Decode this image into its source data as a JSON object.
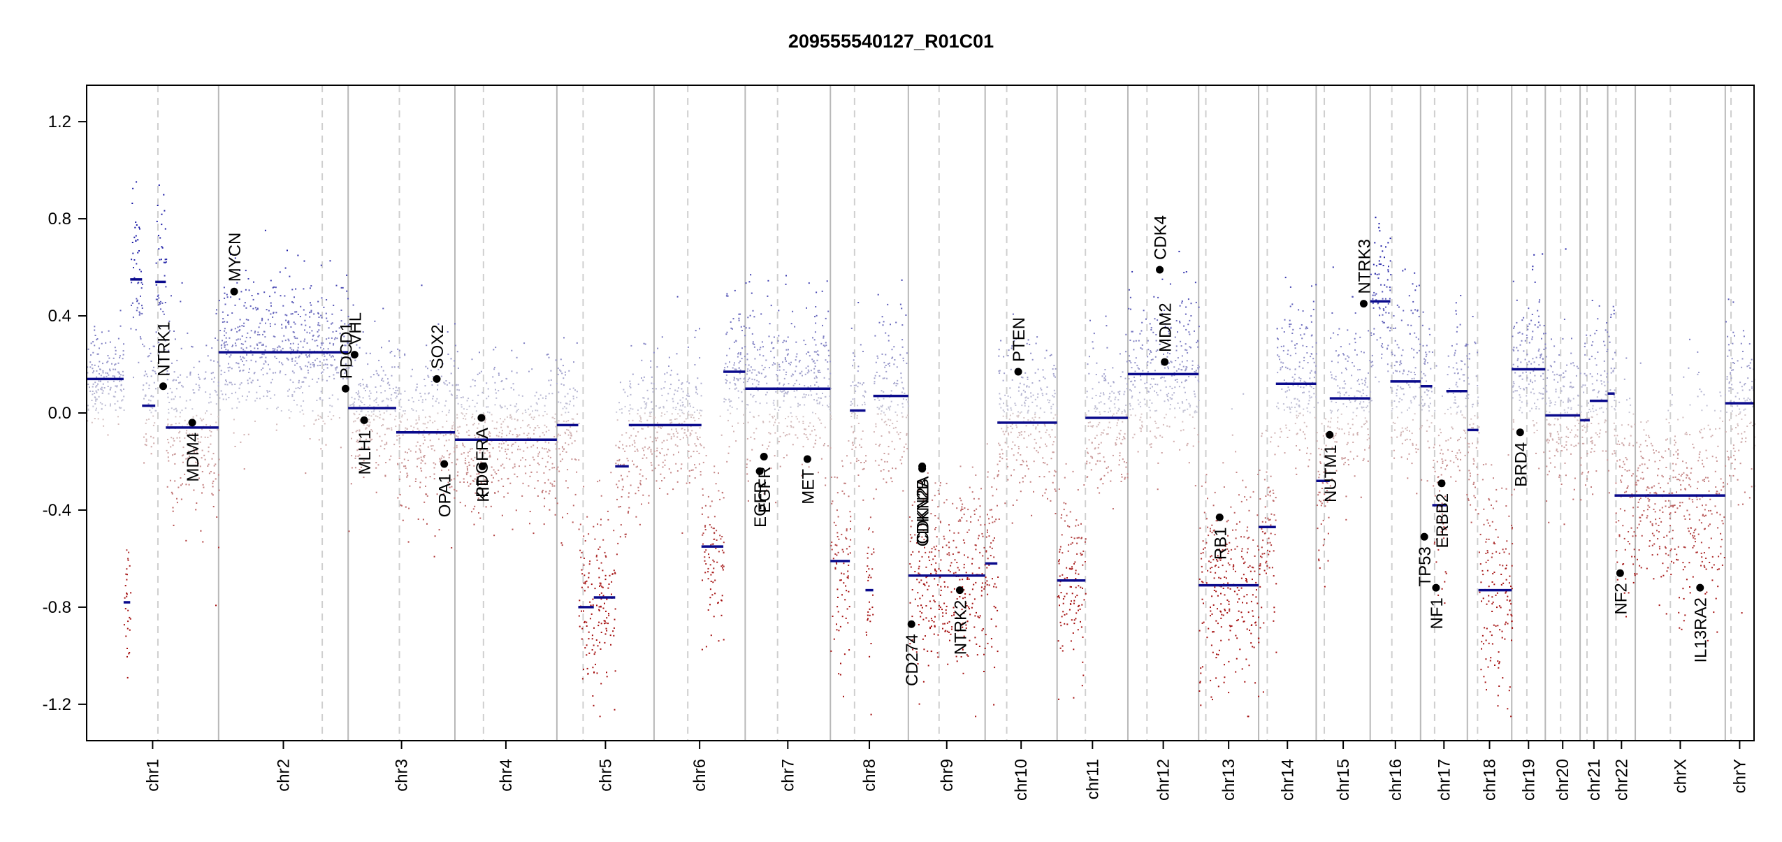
{
  "chart_data": {
    "type": "scatter",
    "title": "209555540127_R01C01",
    "xlabel": "",
    "ylabel": "",
    "ylim": [
      -1.35,
      1.35
    ],
    "yticks": [
      "-1.2",
      "-0.8",
      "-0.4",
      "0.0",
      "0.4",
      "0.8",
      "1.2"
    ],
    "colors": {
      "gain": "#1a1aa6",
      "loss": "#a51010",
      "segment": "#0a0a8c",
      "gene": "#000000",
      "divider": "#b8b8b8"
    },
    "chromosomes": [
      {
        "name": "chr1",
        "width": 11.0,
        "centro": 0.54
      },
      {
        "name": "chr2",
        "width": 10.8,
        "centro": 0.8
      },
      {
        "name": "chr3",
        "width": 8.9,
        "centro": 0.48
      },
      {
        "name": "chr4",
        "width": 8.5,
        "centro": 0.28
      },
      {
        "name": "chr5",
        "width": 8.1,
        "centro": 0.27
      },
      {
        "name": "chr6",
        "width": 7.6,
        "centro": 0.37
      },
      {
        "name": "chr7",
        "width": 7.1,
        "centro": 0.38
      },
      {
        "name": "chr8",
        "width": 6.5,
        "centro": 0.31
      },
      {
        "name": "chr9",
        "width": 6.4,
        "centro": 0.4
      },
      {
        "name": "chr10",
        "width": 6.0,
        "centro": 0.3
      },
      {
        "name": "chr11",
        "width": 5.9,
        "centro": 0.4
      },
      {
        "name": "chr12",
        "width": 5.9,
        "centro": 0.27
      },
      {
        "name": "chr13",
        "width": 5.0,
        "centro": 0.12
      },
      {
        "name": "chr14",
        "width": 4.8,
        "centro": 0.15
      },
      {
        "name": "chr15",
        "width": 4.5,
        "centro": 0.15
      },
      {
        "name": "chr16",
        "width": 4.2,
        "centro": 0.43
      },
      {
        "name": "chr17",
        "width": 3.9,
        "centro": 0.3
      },
      {
        "name": "chr18",
        "width": 3.7,
        "centro": 0.23
      },
      {
        "name": "chr19",
        "width": 2.8,
        "centro": 0.45
      },
      {
        "name": "chr20",
        "width": 2.9,
        "centro": 0.44
      },
      {
        "name": "chr21",
        "width": 2.3,
        "centro": 0.25
      },
      {
        "name": "chr22",
        "width": 2.3,
        "centro": 0.3
      },
      {
        "name": "chrX",
        "width": 7.5,
        "centro": 0.39
      },
      {
        "name": "chrY",
        "width": 2.4,
        "centro": 0.2
      }
    ],
    "profile": [
      {
        "chr": "chr1",
        "from": 0.0,
        "to": 0.28,
        "mean": 0.14,
        "sd": 0.09
      },
      {
        "chr": "chr1",
        "from": 0.28,
        "to": 0.33,
        "mean": -0.78,
        "sd": 0.15
      },
      {
        "chr": "chr1",
        "from": 0.33,
        "to": 0.42,
        "mean": 0.55,
        "sd": 0.2
      },
      {
        "chr": "chr1",
        "from": 0.42,
        "to": 0.52,
        "mean": 0.03,
        "sd": 0.12
      },
      {
        "chr": "chr1",
        "from": 0.52,
        "to": 0.6,
        "mean": 0.54,
        "sd": 0.2
      },
      {
        "chr": "chr1",
        "from": 0.6,
        "to": 1.0,
        "mean": -0.06,
        "sd": 0.2
      },
      {
        "chr": "chr2",
        "from": 0.0,
        "to": 0.62,
        "mean": 0.25,
        "sd": 0.16
      },
      {
        "chr": "chr2",
        "from": 0.62,
        "to": 1.0,
        "mean": 0.25,
        "sd": 0.15
      },
      {
        "chr": "chr3",
        "from": 0.0,
        "to": 0.45,
        "mean": 0.02,
        "sd": 0.15
      },
      {
        "chr": "chr3",
        "from": 0.45,
        "to": 1.0,
        "mean": -0.08,
        "sd": 0.17
      },
      {
        "chr": "chr4",
        "from": 0.0,
        "to": 1.0,
        "mean": -0.11,
        "sd": 0.16
      },
      {
        "chr": "chr5",
        "from": 0.0,
        "to": 0.22,
        "mean": -0.05,
        "sd": 0.16
      },
      {
        "chr": "chr5",
        "from": 0.22,
        "to": 0.38,
        "mean": -0.8,
        "sd": 0.2
      },
      {
        "chr": "chr5",
        "from": 0.38,
        "to": 0.6,
        "mean": -0.76,
        "sd": 0.2
      },
      {
        "chr": "chr5",
        "from": 0.6,
        "to": 0.74,
        "mean": -0.22,
        "sd": 0.18
      },
      {
        "chr": "chr5",
        "from": 0.74,
        "to": 1.0,
        "mean": -0.05,
        "sd": 0.16
      },
      {
        "chr": "chr6",
        "from": 0.0,
        "to": 0.52,
        "mean": -0.05,
        "sd": 0.16
      },
      {
        "chr": "chr6",
        "from": 0.52,
        "to": 0.76,
        "mean": -0.55,
        "sd": 0.18
      },
      {
        "chr": "chr6",
        "from": 0.76,
        "to": 1.0,
        "mean": 0.17,
        "sd": 0.16
      },
      {
        "chr": "chr7",
        "from": 0.0,
        "to": 1.0,
        "mean": 0.1,
        "sd": 0.17
      },
      {
        "chr": "chr8",
        "from": 0.0,
        "to": 0.25,
        "mean": -0.61,
        "sd": 0.22
      },
      {
        "chr": "chr8",
        "from": 0.25,
        "to": 0.45,
        "mean": 0.01,
        "sd": 0.18
      },
      {
        "chr": "chr8",
        "from": 0.45,
        "to": 0.55,
        "mean": -0.73,
        "sd": 0.2
      },
      {
        "chr": "chr8",
        "from": 0.55,
        "to": 1.0,
        "mean": 0.07,
        "sd": 0.17
      },
      {
        "chr": "chr9",
        "from": 0.0,
        "to": 1.0,
        "mean": -0.67,
        "sd": 0.2
      },
      {
        "chr": "chr10",
        "from": 0.0,
        "to": 0.17,
        "mean": -0.62,
        "sd": 0.2
      },
      {
        "chr": "chr10",
        "from": 0.17,
        "to": 1.0,
        "mean": -0.04,
        "sd": 0.16
      },
      {
        "chr": "chr11",
        "from": 0.0,
        "to": 0.4,
        "mean": -0.69,
        "sd": 0.2
      },
      {
        "chr": "chr11",
        "from": 0.4,
        "to": 1.0,
        "mean": -0.02,
        "sd": 0.16
      },
      {
        "chr": "chr12",
        "from": 0.0,
        "to": 1.0,
        "mean": 0.16,
        "sd": 0.17
      },
      {
        "chr": "chr13",
        "from": 0.0,
        "to": 1.0,
        "mean": -0.71,
        "sd": 0.22
      },
      {
        "chr": "chr14",
        "from": 0.0,
        "to": 0.3,
        "mean": -0.47,
        "sd": 0.2
      },
      {
        "chr": "chr14",
        "from": 0.3,
        "to": 1.0,
        "mean": 0.12,
        "sd": 0.17
      },
      {
        "chr": "chr15",
        "from": 0.0,
        "to": 0.25,
        "mean": -0.28,
        "sd": 0.18
      },
      {
        "chr": "chr15",
        "from": 0.25,
        "to": 1.0,
        "mean": 0.06,
        "sd": 0.17
      },
      {
        "chr": "chr16",
        "from": 0.0,
        "to": 0.4,
        "mean": 0.46,
        "sd": 0.18
      },
      {
        "chr": "chr16",
        "from": 0.4,
        "to": 1.0,
        "mean": 0.13,
        "sd": 0.17
      },
      {
        "chr": "chr17",
        "from": 0.0,
        "to": 0.25,
        "mean": 0.11,
        "sd": 0.17
      },
      {
        "chr": "chr17",
        "from": 0.25,
        "to": 0.55,
        "mean": -0.38,
        "sd": 0.2
      },
      {
        "chr": "chr17",
        "from": 0.55,
        "to": 1.0,
        "mean": 0.09,
        "sd": 0.17
      },
      {
        "chr": "chr18",
        "from": 0.0,
        "to": 0.25,
        "mean": -0.07,
        "sd": 0.18
      },
      {
        "chr": "chr18",
        "from": 0.25,
        "to": 1.0,
        "mean": -0.73,
        "sd": 0.22
      },
      {
        "chr": "chr19",
        "from": 0.0,
        "to": 1.0,
        "mean": 0.18,
        "sd": 0.17
      },
      {
        "chr": "chr20",
        "from": 0.0,
        "to": 1.0,
        "mean": -0.01,
        "sd": 0.16
      },
      {
        "chr": "chr21",
        "from": 0.0,
        "to": 0.35,
        "mean": -0.03,
        "sd": 0.18
      },
      {
        "chr": "chr21",
        "from": 0.35,
        "to": 1.0,
        "mean": 0.05,
        "sd": 0.17
      },
      {
        "chr": "chr22",
        "from": 0.0,
        "to": 0.25,
        "mean": 0.08,
        "sd": 0.18
      },
      {
        "chr": "chr22",
        "from": 0.25,
        "to": 1.0,
        "mean": -0.34,
        "sd": 0.22
      },
      {
        "chr": "chrX",
        "from": 0.0,
        "to": 1.0,
        "mean": -0.34,
        "sd": 0.22
      },
      {
        "chr": "chrY",
        "from": 0.0,
        "to": 1.0,
        "mean": 0.04,
        "sd": 0.18
      }
    ],
    "genes": [
      {
        "name": "NTRK1",
        "chr": "chr1",
        "pos": 0.58,
        "value": 0.11
      },
      {
        "name": "MDM4",
        "chr": "chr1",
        "pos": 0.8,
        "value": -0.04
      },
      {
        "name": "MYCN",
        "chr": "chr2",
        "pos": 0.12,
        "value": 0.5
      },
      {
        "name": "VHL",
        "chr": "chr3",
        "pos": 0.06,
        "value": 0.24
      },
      {
        "name": "PDCD1",
        "chr": "chr2",
        "pos": 0.98,
        "value": 0.1
      },
      {
        "name": "MLH1",
        "chr": "chr3",
        "pos": 0.15,
        "value": -0.03
      },
      {
        "name": "SOX2",
        "chr": "chr3",
        "pos": 0.83,
        "value": 0.14
      },
      {
        "name": "OPA1",
        "chr": "chr3",
        "pos": 0.9,
        "value": -0.21
      },
      {
        "name": "KIT",
        "chr": "chr4",
        "pos": 0.27,
        "value": -0.22
      },
      {
        "name": "PDGFRA",
        "chr": "chr4",
        "pos": 0.26,
        "value": -0.02
      },
      {
        "name": "EGFR",
        "chr": "chr7",
        "pos": 0.17,
        "value": -0.24
      },
      {
        "name": "EGFR",
        "chr": "chr7",
        "pos": 0.22,
        "value": -0.18
      },
      {
        "name": "MET",
        "chr": "chr7",
        "pos": 0.73,
        "value": -0.19
      },
      {
        "name": "CD274",
        "chr": "chr9",
        "pos": 0.04,
        "value": -0.87
      },
      {
        "name": "CDKN2A",
        "chr": "chr9",
        "pos": 0.18,
        "value": -0.22
      },
      {
        "name": "CDKN2B",
        "chr": "chr9",
        "pos": 0.18,
        "value": -0.23
      },
      {
        "name": "NTRK2",
        "chr": "chr9",
        "pos": 0.67,
        "value": -0.73
      },
      {
        "name": "PTEN",
        "chr": "chr10",
        "pos": 0.46,
        "value": 0.17
      },
      {
        "name": "CDK4",
        "chr": "chr12",
        "pos": 0.45,
        "value": 0.59
      },
      {
        "name": "MDM2",
        "chr": "chr12",
        "pos": 0.52,
        "value": 0.21
      },
      {
        "name": "RB1",
        "chr": "chr13",
        "pos": 0.35,
        "value": -0.43
      },
      {
        "name": "NUTM1",
        "chr": "chr15",
        "pos": 0.25,
        "value": -0.09
      },
      {
        "name": "NTRK3",
        "chr": "chr15",
        "pos": 0.88,
        "value": 0.45
      },
      {
        "name": "TP53",
        "chr": "chr17",
        "pos": 0.08,
        "value": -0.51
      },
      {
        "name": "NF1",
        "chr": "chr17",
        "pos": 0.33,
        "value": -0.72
      },
      {
        "name": "ERBB2",
        "chr": "chr17",
        "pos": 0.45,
        "value": -0.29
      },
      {
        "name": "BRD4",
        "chr": "chr19",
        "pos": 0.25,
        "value": -0.08
      },
      {
        "name": "NF2",
        "chr": "chr22",
        "pos": 0.45,
        "value": -0.66
      },
      {
        "name": "IL13RA2",
        "chr": "chrX",
        "pos": 0.72,
        "value": -0.72
      }
    ]
  }
}
